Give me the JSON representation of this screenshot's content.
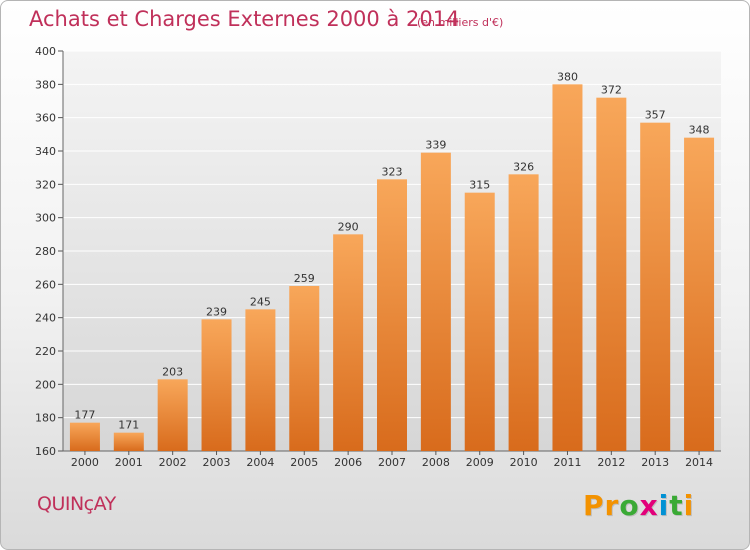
{
  "title": "Achats et Charges Externes 2000 à 2014",
  "subtitle": "(en milliers d'€)",
  "location": "QUINçAY",
  "logo": {
    "letters": [
      "P",
      "r",
      "o",
      "x",
      "i",
      "t",
      "i"
    ],
    "colors": [
      "#f39200",
      "#f39200",
      "#3aaa35",
      "#e2007a",
      "#0091d4",
      "#3aaa35",
      "#f39200"
    ]
  },
  "colors": {
    "bar_top": "#f8a75a",
    "bar_bottom": "#d86b1c",
    "text_accent": "#c0305a"
  },
  "chart_data": {
    "type": "bar",
    "title": "Achats et Charges Externes 2000 à 2014",
    "categories": [
      "2000",
      "2001",
      "2002",
      "2003",
      "2004",
      "2005",
      "2006",
      "2007",
      "2008",
      "2009",
      "2010",
      "2011",
      "2012",
      "2013",
      "2014"
    ],
    "values": [
      177,
      171,
      203,
      239,
      245,
      259,
      290,
      323,
      339,
      315,
      326,
      380,
      372,
      357,
      348
    ],
    "ylim": [
      160,
      400
    ],
    "yticks": [
      160,
      180,
      200,
      220,
      240,
      260,
      280,
      300,
      320,
      340,
      360,
      380,
      400
    ],
    "grid": true,
    "data_labels": true
  }
}
